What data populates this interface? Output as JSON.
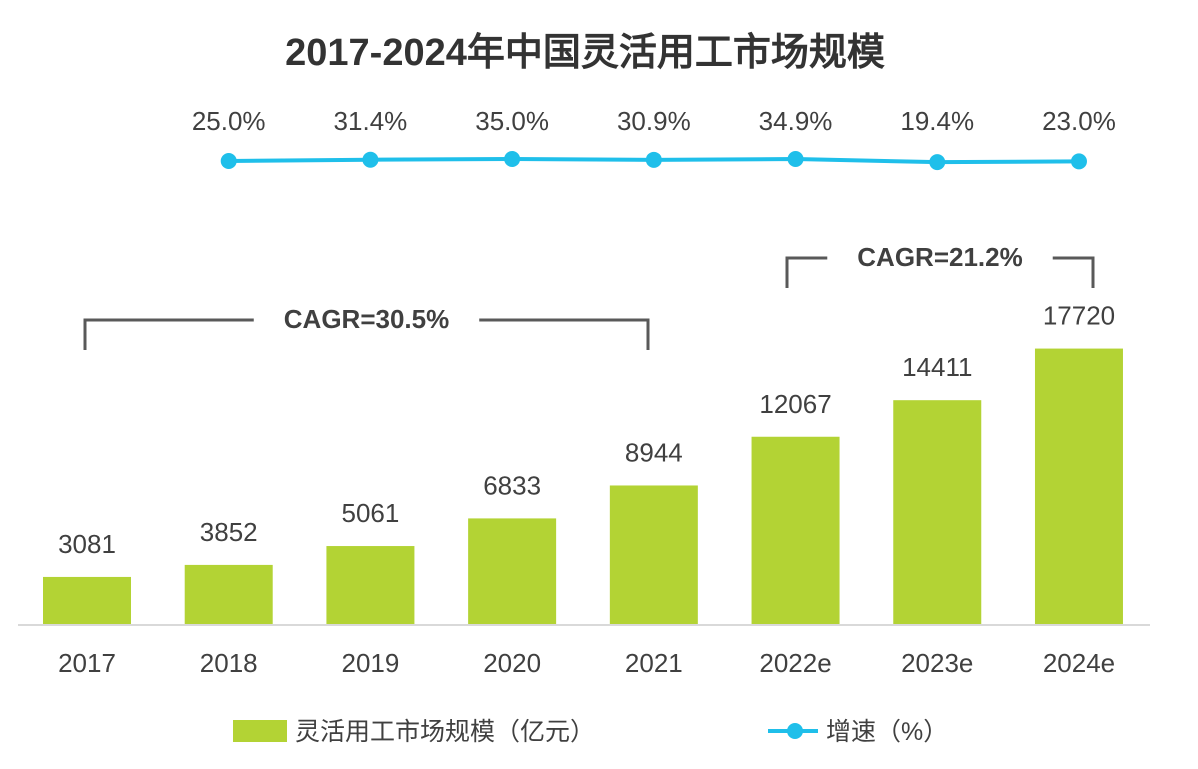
{
  "chart_data": {
    "type": "bar",
    "title": "2017-2024年中国灵活用工市场规模",
    "categories": [
      "2017",
      "2018",
      "2019",
      "2020",
      "2021",
      "2022e",
      "2023e",
      "2024e"
    ],
    "series": [
      {
        "name": "灵活用工市场规模（亿元）",
        "type": "bar",
        "values": [
          3081,
          3852,
          5061,
          6833,
          8944,
          12067,
          14411,
          17720
        ],
        "color": "#b3d334"
      },
      {
        "name": "增速（%）",
        "type": "line",
        "x": [
          "2018",
          "2019",
          "2020",
          "2021",
          "2022e",
          "2023e",
          "2024e"
        ],
        "values": [
          25.0,
          31.4,
          35.0,
          30.9,
          34.9,
          19.4,
          23.0
        ],
        "color": "#1fbfea"
      }
    ],
    "annotations": [
      {
        "text": "CAGR=30.5%",
        "from": "2017",
        "to": "2021"
      },
      {
        "text": "CAGR=21.2%",
        "from": "2022e",
        "to": "2024e"
      }
    ],
    "legend": "bottom",
    "grid": false
  }
}
